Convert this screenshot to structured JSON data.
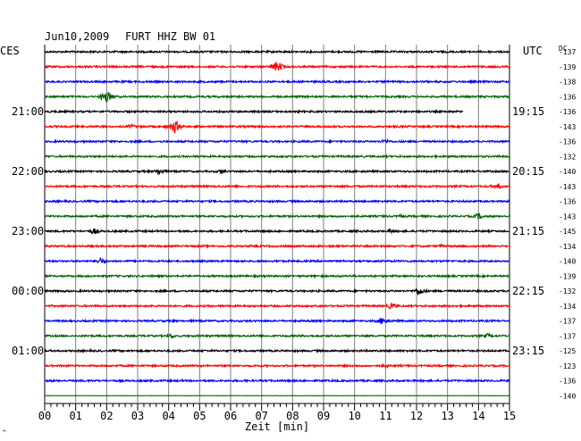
{
  "header": {
    "date": "Jun10,2009",
    "station": "FURT HHZ BW 01",
    "left_zone": "CES",
    "right_zone": "UTC",
    "dc_label": "DC"
  },
  "chart_data": {
    "type": "line",
    "title": "Jun10,2009   FURT HHZ BW 01",
    "xlabel": "Zeit [min]",
    "xlim": [
      0,
      15
    ],
    "x_ticks": [
      "00",
      "01",
      "02",
      "03",
      "04",
      "05",
      "06",
      "07",
      "08",
      "09",
      "10",
      "11",
      "12",
      "13",
      "14",
      "15"
    ],
    "grid": true,
    "left_labels": [
      {
        "trace": 4,
        "text": "21:00"
      },
      {
        "trace": 8,
        "text": "22:00"
      },
      {
        "trace": 12,
        "text": "23:00"
      },
      {
        "trace": 16,
        "text": "00:00"
      },
      {
        "trace": 20,
        "text": "01:00"
      }
    ],
    "right_labels": [
      {
        "trace": 4,
        "text": "19:15"
      },
      {
        "trace": 8,
        "text": "20:15"
      },
      {
        "trace": 12,
        "text": "21:15"
      },
      {
        "trace": 16,
        "text": "22:15"
      },
      {
        "trace": 20,
        "text": "23:15"
      }
    ],
    "colors": [
      "#000000",
      "#ff0000",
      "#0000ff",
      "#006400"
    ],
    "traces": [
      {
        "dc": "-137",
        "events": []
      },
      {
        "dc": "-139",
        "events": [
          {
            "t": 7.5,
            "amp": 7
          }
        ]
      },
      {
        "dc": "-138",
        "events": []
      },
      {
        "dc": "-136",
        "events": [
          {
            "t": 2.0,
            "amp": 8
          }
        ]
      },
      {
        "dc": "-136",
        "events": [],
        "end": 13.5
      },
      {
        "dc": "-143",
        "events": [
          {
            "t": 4.2,
            "amp": 8
          },
          {
            "t": 2.8,
            "amp": 3
          }
        ]
      },
      {
        "dc": "-136",
        "events": [
          {
            "t": 11.0,
            "amp": 3
          }
        ]
      },
      {
        "dc": "-132",
        "events": []
      },
      {
        "dc": "-140",
        "events": [
          {
            "t": 3.7,
            "amp": 4
          },
          {
            "t": 5.7,
            "amp": 3
          }
        ]
      },
      {
        "dc": "-143",
        "events": [
          {
            "t": 14.6,
            "amp": 4
          }
        ]
      },
      {
        "dc": "-136",
        "events": []
      },
      {
        "dc": "-143",
        "events": [
          {
            "t": 14.0,
            "amp": 4
          },
          {
            "t": 11.5,
            "amp": 2.5
          }
        ]
      },
      {
        "dc": "-145",
        "events": [
          {
            "t": 1.6,
            "amp": 4
          },
          {
            "t": 11.2,
            "amp": 3
          }
        ]
      },
      {
        "dc": "-134",
        "events": [
          {
            "t": 12.8,
            "amp": 2
          }
        ]
      },
      {
        "dc": "-140",
        "events": [
          {
            "t": 1.8,
            "amp": 4
          }
        ]
      },
      {
        "dc": "-139",
        "events": []
      },
      {
        "dc": "-132",
        "events": [
          {
            "t": 12.1,
            "amp": 5
          }
        ]
      },
      {
        "dc": "-134",
        "events": [
          {
            "t": 11.2,
            "amp": 4
          }
        ]
      },
      {
        "dc": "-137",
        "events": [
          {
            "t": 10.9,
            "amp": 5
          }
        ]
      },
      {
        "dc": "-137",
        "events": [
          {
            "t": 4.1,
            "amp": 3
          },
          {
            "t": 14.3,
            "amp": 3
          }
        ]
      },
      {
        "dc": "-125",
        "events": []
      },
      {
        "dc": "-123",
        "events": [
          {
            "t": 11.0,
            "amp": 2.5
          }
        ]
      },
      {
        "dc": "-136",
        "events": []
      },
      {
        "dc": "-140",
        "events": [],
        "flat": true
      }
    ]
  }
}
